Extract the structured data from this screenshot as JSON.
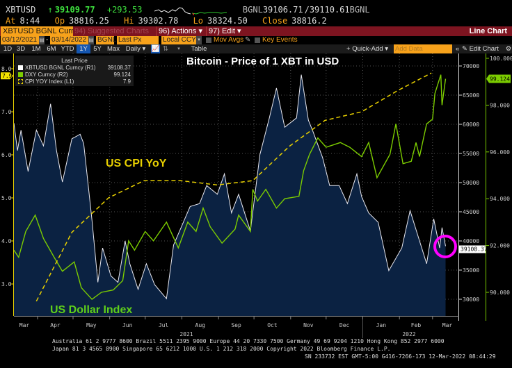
{
  "quote": {
    "ticker": "XBTUSD",
    "arrow": "↑",
    "last": "39109.77",
    "change": "+293.53",
    "bid_src": "BGNL",
    "bid": "39106.71",
    "ask": "/39110.61",
    "ask_src": "BGNL",
    "at_label": "At",
    "at": "8:44",
    "op_label": "Op",
    "op": "38816.25",
    "hi_label": "Hi",
    "hi": "39302.78",
    "lo_label": "Lo",
    "lo": "38324.50",
    "close_label": "Close",
    "close": "38816.2"
  },
  "menubar": {
    "security": "XBTUSD BGNL Curncy",
    "suggested": "94) Suggested Charts",
    "actions": "96) Actions ▾",
    "edit": "97) Edit ▾",
    "view": "Line Chart"
  },
  "controls": {
    "start_date": "03/12/2021",
    "dash": "-",
    "end_date": "03/14/2022",
    "source": "BGNL",
    "field": "Last Px",
    "currency": "Local CCY",
    "mov_avgs": "Mov Avgs",
    "key_events": "Key Events"
  },
  "toolbar": {
    "periods": [
      "1D",
      "3D",
      "1M",
      "6M",
      "YTD",
      "1Y",
      "5Y",
      "Max"
    ],
    "selected_period": "1Y",
    "frequency": "Daily ▾",
    "table": "Table",
    "quick_add": "+ Quick-Add ▾",
    "add_data_placeholder": "Add Data",
    "collapse": "«",
    "edit_chart": "✎ Edit Chart",
    "settings": "⚙"
  },
  "legend": {
    "title": "Last Price",
    "items": [
      {
        "label": "XBTUSD BGNL Curncy  (R1)",
        "value": "39108.37",
        "color": "#ffffff"
      },
      {
        "label": "DXY Curncy  (R2)",
        "value": "99.124",
        "color": "#7ccd00"
      },
      {
        "label": "CPI YOY Index  (L1)",
        "value": "7.9",
        "color": "#e8d000"
      }
    ]
  },
  "annotations": {
    "title": "Bitcoin - Price of 1 XBT in USD",
    "cpi": "US CPI YoY",
    "dxy": "US Dollar Index"
  },
  "colors": {
    "btc_line": "#e8e8f0",
    "btc_fill": "#0b2242",
    "dxy": "#7ccd00",
    "cpi": "#e8d000",
    "highlight_circle": "#ff00ff",
    "menubar": "#7d1420",
    "field_bg": "#f7a21b"
  },
  "chart_data": {
    "type": "line",
    "title": "Bitcoin - Price of 1 XBT in USD",
    "x_range": [
      "2021-03-12",
      "2022-03-14"
    ],
    "x_tick_labels": [
      "Mar",
      "Apr",
      "May",
      "Jun",
      "Jul",
      "Aug",
      "Sep",
      "Oct",
      "Nov",
      "Dec",
      "Jan",
      "Feb",
      "Mar"
    ],
    "year_labels": [
      "2021",
      "2022"
    ],
    "axes": {
      "left": {
        "series": "CPI YOY Index",
        "ticks": [
          "3.0",
          "4.0",
          "5.0",
          "6.0",
          "7.0",
          "8.0"
        ],
        "range": [
          2.3,
          8.3
        ],
        "last_badge": "7.9"
      },
      "right1": {
        "series": "XBTUSD BGNL Curncy",
        "ticks": [
          "30000",
          "35000",
          "40000",
          "45000",
          "50000",
          "55000",
          "60000",
          "65000",
          "70000"
        ],
        "range": [
          27000,
          72000
        ],
        "last_badge": "39108.37"
      },
      "right2": {
        "series": "DXY Curncy",
        "ticks": [
          "90.000",
          "92.000",
          "94.000",
          "96.000",
          "98.000",
          "100.000"
        ],
        "range": [
          89.0,
          100.2
        ],
        "last_badge": "99.124"
      }
    },
    "grid": true,
    "legend_position": "top-left",
    "series": [
      {
        "name": "XBTUSD BGNL Curncy",
        "axis": "right1",
        "style": "area",
        "x": [
          "2021-03-12",
          "2021-03-15",
          "2021-03-18",
          "2021-03-24",
          "2021-03-31",
          "2021-04-06",
          "2021-04-12",
          "2021-04-17",
          "2021-04-22",
          "2021-04-30",
          "2021-05-07",
          "2021-05-10",
          "2021-05-14",
          "2021-05-17",
          "2021-05-22",
          "2021-05-26",
          "2021-06-02",
          "2021-06-08",
          "2021-06-14",
          "2021-06-18",
          "2021-06-25",
          "2021-07-02",
          "2021-07-09",
          "2021-07-19",
          "2021-07-25",
          "2021-08-08",
          "2021-08-16",
          "2021-08-22",
          "2021-08-31",
          "2021-09-06",
          "2021-09-12",
          "2021-09-18",
          "2021-09-28",
          "2021-10-06",
          "2021-10-14",
          "2021-10-20",
          "2021-10-27",
          "2021-11-06",
          "2021-11-10",
          "2021-11-16",
          "2021-11-20",
          "2021-11-28",
          "2021-12-04",
          "2021-12-12",
          "2021-12-19",
          "2021-12-27",
          "2021-12-31",
          "2022-01-06",
          "2022-01-14",
          "2022-01-23",
          "2022-02-03",
          "2022-02-10",
          "2022-02-18",
          "2022-02-24",
          "2022-03-02",
          "2022-03-07",
          "2022-03-09",
          "2022-03-12"
        ],
        "values": [
          60200,
          55500,
          59000,
          51900,
          59000,
          56300,
          63500,
          55500,
          50100,
          57500,
          58300,
          56700,
          49200,
          43600,
          32900,
          38800,
          34000,
          32900,
          40000,
          36100,
          31700,
          36100,
          32500,
          30100,
          39300,
          45900,
          46400,
          49500,
          48000,
          51500,
          44800,
          48000,
          41700,
          54800,
          61100,
          66200,
          59500,
          61100,
          68500,
          60700,
          58700,
          54300,
          49500,
          49500,
          46400,
          51500,
          47600,
          44800,
          43200,
          34900,
          38800,
          45200,
          40000,
          36100,
          43800,
          38800,
          42300,
          39108.37
        ]
      },
      {
        "name": "DXY Curncy",
        "axis": "right2",
        "style": "line",
        "x": [
          "2021-03-12",
          "2021-03-16",
          "2021-03-22",
          "2021-03-30",
          "2021-04-06",
          "2021-04-15",
          "2021-04-22",
          "2021-05-02",
          "2021-05-08",
          "2021-05-17",
          "2021-05-25",
          "2021-06-04",
          "2021-06-12",
          "2021-06-17",
          "2021-06-22",
          "2021-07-01",
          "2021-07-08",
          "2021-07-19",
          "2021-07-29",
          "2021-08-06",
          "2021-08-13",
          "2021-08-19",
          "2021-08-25",
          "2021-09-04",
          "2021-09-15",
          "2021-09-18",
          "2021-09-28",
          "2021-09-30",
          "2021-10-04",
          "2021-10-11",
          "2021-10-20",
          "2021-10-27",
          "2021-11-08",
          "2021-11-12",
          "2021-11-17",
          "2021-11-24",
          "2021-12-01",
          "2021-12-13",
          "2021-12-21",
          "2021-12-31",
          "2022-01-06",
          "2022-01-13",
          "2022-01-24",
          "2022-01-29",
          "2022-02-04",
          "2022-02-11",
          "2022-02-15",
          "2022-02-18",
          "2022-02-24",
          "2022-03-01",
          "2022-03-03",
          "2022-03-08",
          "2022-03-09",
          "2022-03-12"
        ],
        "values": [
          91.8,
          91.5,
          92.6,
          93.3,
          92.3,
          91.5,
          90.9,
          91.3,
          90.2,
          89.7,
          90.0,
          90.1,
          90.5,
          92.2,
          91.8,
          92.6,
          92.2,
          93.0,
          91.9,
          93.0,
          92.6,
          93.6,
          92.8,
          92.1,
          92.7,
          93.3,
          92.6,
          94.4,
          93.9,
          94.4,
          93.6,
          94.0,
          94.1,
          95.2,
          95.9,
          96.6,
          96.2,
          96.4,
          96.2,
          95.8,
          96.4,
          94.9,
          95.9,
          97.2,
          95.5,
          95.6,
          96.4,
          95.8,
          97.2,
          97.4,
          98.5,
          99.3,
          98.0,
          99.124
        ]
      },
      {
        "name": "CPI YOY Index",
        "axis": "left",
        "style": "dashed",
        "x": [
          "2021-03-31",
          "2021-04-30",
          "2021-05-31",
          "2021-06-30",
          "2021-07-31",
          "2021-08-31",
          "2021-09-30",
          "2021-10-31",
          "2021-11-30",
          "2021-12-31",
          "2022-01-31",
          "2022-02-28"
        ],
        "values": [
          2.6,
          4.2,
          5.0,
          5.4,
          5.4,
          5.3,
          5.4,
          6.2,
          6.8,
          7.0,
          7.5,
          7.9
        ]
      }
    ]
  },
  "footer": {
    "line1": "Australia 61 2 9777 8600 Brazil 5511 2395 9000 Europe 44 20 7330 7500 Germany 49 69 9204 1210 Hong Kong 852 2977 6000",
    "line2": "Japan 81 3 4565 8900       Singapore 65 6212 1000       U.S. 1 212 318 2000        Copyright 2022 Bloomberg Finance L.P.",
    "line3": "SN 233732 EST  GMT-5:00 G416-7266-173 12-Mar-2022 08:44:29"
  }
}
